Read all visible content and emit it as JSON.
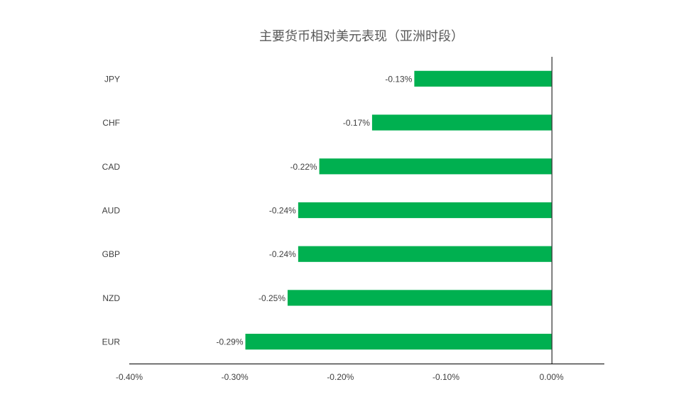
{
  "chart_data": {
    "type": "bar",
    "orientation": "horizontal",
    "title": "主要货币相对美元表现（亚洲时段）",
    "categories": [
      "JPY",
      "CHF",
      "CAD",
      "AUD",
      "GBP",
      "NZD",
      "EUR"
    ],
    "values": [
      -0.13,
      -0.17,
      -0.22,
      -0.24,
      -0.24,
      -0.25,
      -0.29
    ],
    "data_labels": [
      "-0.13%",
      "-0.17%",
      "-0.22%",
      "-0.24%",
      "-0.24%",
      "-0.25%",
      "-0.29%"
    ],
    "x_ticks": [
      -0.4,
      -0.3,
      -0.2,
      -0.1,
      0.0
    ],
    "x_tick_labels": [
      "-0.40%",
      "-0.30%",
      "-0.20%",
      "-0.10%",
      "0.00%"
    ],
    "xlim": [
      -0.4,
      0.05
    ],
    "xlabel": "",
    "ylabel": "",
    "grid": false,
    "legend": "none",
    "bar_color": "#00B050",
    "axis_color": "#000000"
  }
}
